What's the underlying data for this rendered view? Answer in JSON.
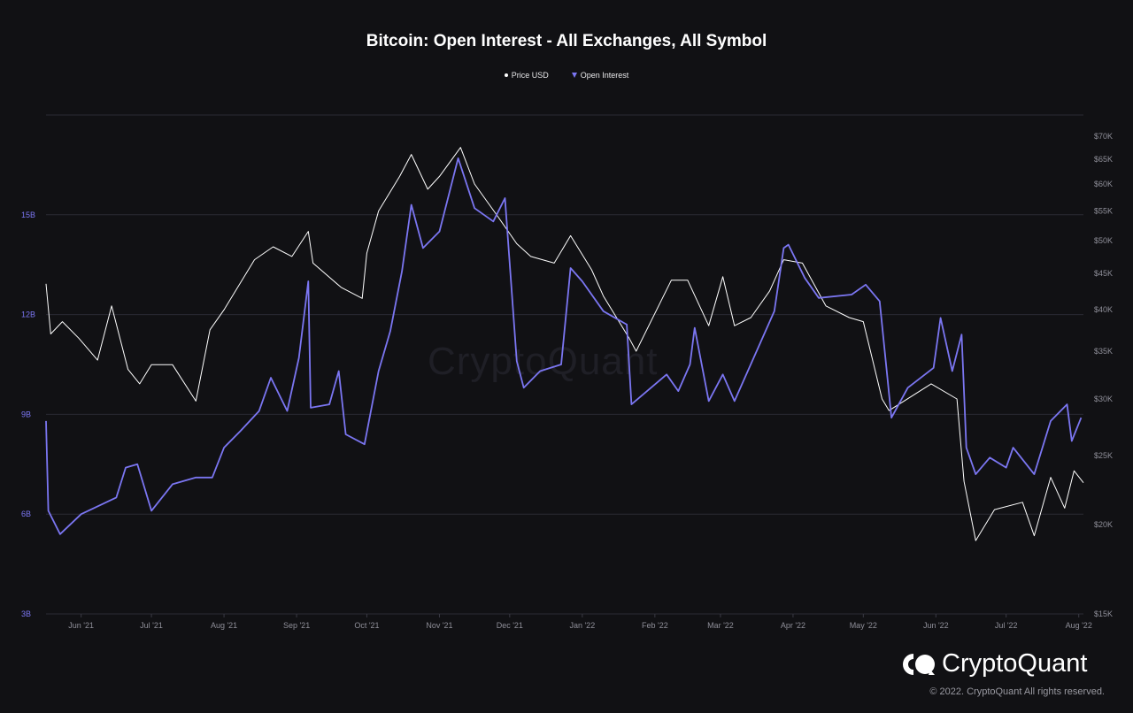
{
  "chart_data": {
    "type": "line",
    "title": "Bitcoin: Open Interest - All Exchanges, All Symbol",
    "legend": {
      "placement": "top-center",
      "entries": [
        {
          "name": "Price USD",
          "color": "#ffffff",
          "marker": "dot"
        },
        {
          "name": "Open Interest",
          "color": "#7b76f2",
          "marker": "triangle"
        }
      ]
    },
    "x_axis": {
      "tick_labels": [
        "Jun '21",
        "Jul '21",
        "Aug '21",
        "Sep '21",
        "Oct '21",
        "Nov '21",
        "Dec '21",
        "Jan '22",
        "Feb '22",
        "Mar '22",
        "Apr '22",
        "May '22",
        "Jun '22",
        "Jul '22",
        "Aug '22"
      ],
      "range": [
        "2021-05-17",
        "2022-08-03"
      ]
    },
    "y_left": {
      "series": "Open Interest",
      "tick_labels": [
        "3B",
        "6B",
        "9B",
        "12B",
        "15B"
      ],
      "range": [
        3,
        18
      ],
      "unit": "B USD"
    },
    "y_right": {
      "series": "Price USD",
      "scale": "log",
      "tick_labels": [
        "$15K",
        "$20K",
        "$25K",
        "$30K",
        "$35K",
        "$40K",
        "$45K",
        "$50K",
        "$55K",
        "$60K",
        "$65K",
        "$70K"
      ],
      "range": [
        15000,
        70000
      ]
    },
    "grid": {
      "horizontal": true,
      "vertical": false
    },
    "series": [
      {
        "name": "Price USD",
        "color": "#ffffff",
        "axis": "right",
        "points": [
          [
            "2021-05-17",
            43500
          ],
          [
            "2021-05-19",
            37000
          ],
          [
            "2021-05-24",
            38500
          ],
          [
            "2021-05-31",
            36500
          ],
          [
            "2021-06-08",
            34000
          ],
          [
            "2021-06-14",
            40500
          ],
          [
            "2021-06-21",
            33000
          ],
          [
            "2021-06-26",
            31500
          ],
          [
            "2021-07-01",
            33500
          ],
          [
            "2021-07-10",
            33500
          ],
          [
            "2021-07-20",
            29800
          ],
          [
            "2021-07-26",
            37500
          ],
          [
            "2021-08-01",
            40000
          ],
          [
            "2021-08-14",
            47000
          ],
          [
            "2021-08-22",
            49000
          ],
          [
            "2021-08-30",
            47500
          ],
          [
            "2021-09-06",
            51500
          ],
          [
            "2021-09-08",
            46500
          ],
          [
            "2021-09-20",
            43000
          ],
          [
            "2021-09-29",
            41500
          ],
          [
            "2021-10-01",
            48000
          ],
          [
            "2021-10-06",
            55000
          ],
          [
            "2021-10-15",
            61500
          ],
          [
            "2021-10-20",
            66000
          ],
          [
            "2021-10-27",
            59000
          ],
          [
            "2021-11-01",
            61500
          ],
          [
            "2021-11-10",
            67500
          ],
          [
            "2021-11-16",
            60000
          ],
          [
            "2021-11-26",
            54000
          ],
          [
            "2021-12-04",
            49500
          ],
          [
            "2021-12-10",
            47500
          ],
          [
            "2021-12-20",
            46500
          ],
          [
            "2021-12-27",
            50800
          ],
          [
            "2022-01-05",
            45500
          ],
          [
            "2022-01-10",
            41800
          ],
          [
            "2022-01-21",
            36500
          ],
          [
            "2022-01-24",
            35000
          ],
          [
            "2022-02-08",
            44000
          ],
          [
            "2022-02-15",
            44000
          ],
          [
            "2022-02-24",
            38000
          ],
          [
            "2022-03-02",
            44500
          ],
          [
            "2022-03-07",
            38000
          ],
          [
            "2022-03-14",
            39000
          ],
          [
            "2022-03-22",
            42500
          ],
          [
            "2022-03-28",
            47000
          ],
          [
            "2022-04-05",
            46500
          ],
          [
            "2022-04-15",
            40500
          ],
          [
            "2022-04-25",
            39000
          ],
          [
            "2022-05-01",
            38500
          ],
          [
            "2022-05-09",
            30000
          ],
          [
            "2022-05-12",
            28900
          ],
          [
            "2022-05-30",
            31500
          ],
          [
            "2022-06-10",
            30000
          ],
          [
            "2022-06-13",
            23000
          ],
          [
            "2022-06-18",
            19000
          ],
          [
            "2022-06-26",
            21000
          ],
          [
            "2022-07-08",
            21500
          ],
          [
            "2022-07-13",
            19300
          ],
          [
            "2022-07-20",
            23300
          ],
          [
            "2022-07-26",
            21100
          ],
          [
            "2022-07-30",
            23800
          ],
          [
            "2022-08-03",
            22900
          ]
        ]
      },
      {
        "name": "Open Interest",
        "color": "#7b76f2",
        "axis": "left",
        "points": [
          [
            "2021-05-17",
            8.8
          ],
          [
            "2021-05-18",
            6.1
          ],
          [
            "2021-05-23",
            5.4
          ],
          [
            "2021-06-01",
            6.0
          ],
          [
            "2021-06-10",
            6.3
          ],
          [
            "2021-06-16",
            6.5
          ],
          [
            "2021-06-20",
            7.4
          ],
          [
            "2021-06-25",
            7.5
          ],
          [
            "2021-07-01",
            6.1
          ],
          [
            "2021-07-10",
            6.9
          ],
          [
            "2021-07-20",
            7.1
          ],
          [
            "2021-07-27",
            7.1
          ],
          [
            "2021-08-01",
            8.0
          ],
          [
            "2021-08-08",
            8.5
          ],
          [
            "2021-08-16",
            9.1
          ],
          [
            "2021-08-21",
            10.1
          ],
          [
            "2021-08-28",
            9.1
          ],
          [
            "2021-09-02",
            10.7
          ],
          [
            "2021-09-06",
            13.0
          ],
          [
            "2021-09-07",
            9.2
          ],
          [
            "2021-09-15",
            9.3
          ],
          [
            "2021-09-19",
            10.3
          ],
          [
            "2021-09-22",
            8.4
          ],
          [
            "2021-09-30",
            8.1
          ],
          [
            "2021-10-06",
            10.3
          ],
          [
            "2021-10-11",
            11.5
          ],
          [
            "2021-10-16",
            13.3
          ],
          [
            "2021-10-20",
            15.3
          ],
          [
            "2021-10-25",
            14.0
          ],
          [
            "2021-11-01",
            14.5
          ],
          [
            "2021-11-09",
            16.7
          ],
          [
            "2021-11-16",
            15.2
          ],
          [
            "2021-11-24",
            14.8
          ],
          [
            "2021-11-29",
            15.5
          ],
          [
            "2021-12-04",
            10.6
          ],
          [
            "2021-12-07",
            9.8
          ],
          [
            "2021-12-14",
            10.3
          ],
          [
            "2021-12-23",
            10.5
          ],
          [
            "2021-12-27",
            13.4
          ],
          [
            "2022-01-01",
            13.0
          ],
          [
            "2022-01-10",
            12.1
          ],
          [
            "2022-01-20",
            11.7
          ],
          [
            "2022-01-22",
            9.3
          ],
          [
            "2022-02-06",
            10.2
          ],
          [
            "2022-02-11",
            9.7
          ],
          [
            "2022-02-16",
            10.5
          ],
          [
            "2022-02-18",
            11.6
          ],
          [
            "2022-02-24",
            9.4
          ],
          [
            "2022-03-02",
            10.2
          ],
          [
            "2022-03-07",
            9.4
          ],
          [
            "2022-03-24",
            12.1
          ],
          [
            "2022-03-28",
            14.0
          ],
          [
            "2022-03-30",
            14.1
          ],
          [
            "2022-04-06",
            13.1
          ],
          [
            "2022-04-12",
            12.5
          ],
          [
            "2022-04-26",
            12.6
          ],
          [
            "2022-05-02",
            12.9
          ],
          [
            "2022-05-08",
            12.4
          ],
          [
            "2022-05-11",
            10.3
          ],
          [
            "2022-05-13",
            8.9
          ],
          [
            "2022-05-20",
            9.8
          ],
          [
            "2022-05-31",
            10.4
          ],
          [
            "2022-06-03",
            11.9
          ],
          [
            "2022-06-08",
            10.3
          ],
          [
            "2022-06-12",
            11.4
          ],
          [
            "2022-06-14",
            8.0
          ],
          [
            "2022-06-18",
            7.2
          ],
          [
            "2022-06-24",
            7.7
          ],
          [
            "2022-07-01",
            7.4
          ],
          [
            "2022-07-04",
            8.0
          ],
          [
            "2022-07-13",
            7.2
          ],
          [
            "2022-07-20",
            8.8
          ],
          [
            "2022-07-27",
            9.3
          ],
          [
            "2022-07-29",
            8.2
          ],
          [
            "2022-08-02",
            8.9
          ]
        ]
      }
    ]
  },
  "watermark": "CryptoQuant",
  "brand": "CryptoQuant",
  "copyright": "© 2022. CryptoQuant All rights reserved.",
  "colors": {
    "background": "#111114",
    "grid": "#2a2a33",
    "open_interest": "#7b76f2",
    "price": "#ffffff"
  }
}
